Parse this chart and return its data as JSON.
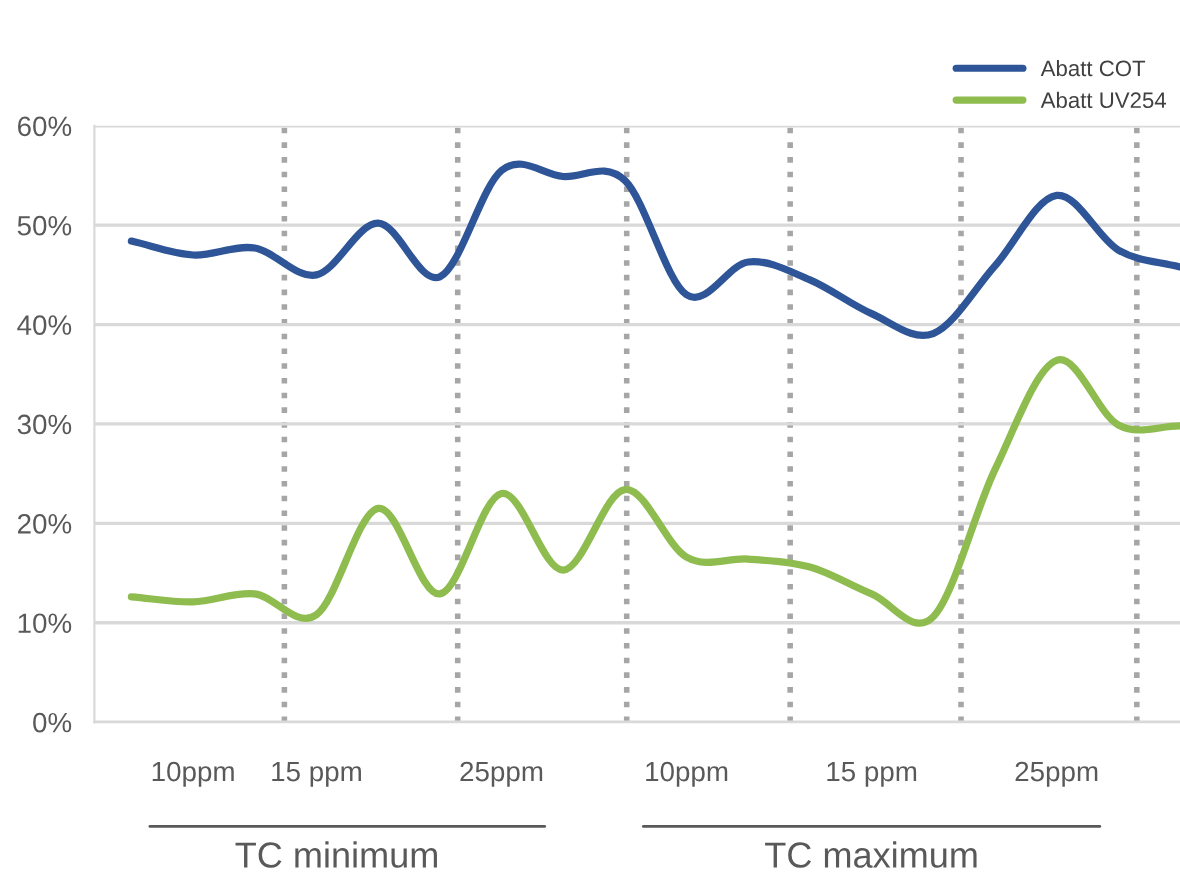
{
  "chart_data": {
    "type": "line",
    "categories": [
      null,
      "10ppm",
      null,
      "15 ppm",
      null,
      null,
      "25ppm",
      null,
      null,
      "10ppm",
      null,
      null,
      "15 ppm",
      null,
      null,
      "25ppm",
      null,
      null
    ],
    "series": [
      {
        "name": "Abatt COT",
        "color": "#2e5597",
        "values": [
          48.4,
          47.0,
          47.7,
          45.0,
          50.2,
          44.8,
          55.5,
          54.9,
          54.5,
          43.0,
          46.3,
          44.5,
          41.1,
          39.1,
          45.9,
          53.0,
          47.5,
          45.8
        ]
      },
      {
        "name": "Abatt UV254",
        "color": "#8fbc4f",
        "values": [
          12.6,
          12.1,
          12.9,
          10.8,
          21.5,
          12.9,
          23.0,
          15.3,
          23.4,
          16.6,
          16.4,
          15.6,
          12.9,
          10.6,
          25.4,
          36.4,
          29.9,
          29.8
        ]
      }
    ],
    "ylim": [
      0,
      60
    ],
    "yticks": [
      {
        "value": 0,
        "label": "0%"
      },
      {
        "value": 10,
        "label": "10%"
      },
      {
        "value": 20,
        "label": "20%"
      },
      {
        "value": 30,
        "label": "30%"
      },
      {
        "value": 40,
        "label": "40%"
      },
      {
        "value": 50,
        "label": "50%"
      },
      {
        "value": 60,
        "label": "60%"
      }
    ],
    "grid": true,
    "legend": "top right",
    "marker": "none",
    "line_style": "solid",
    "annotations": [
      "TC minimum",
      "TC maximum"
    ]
  }
}
